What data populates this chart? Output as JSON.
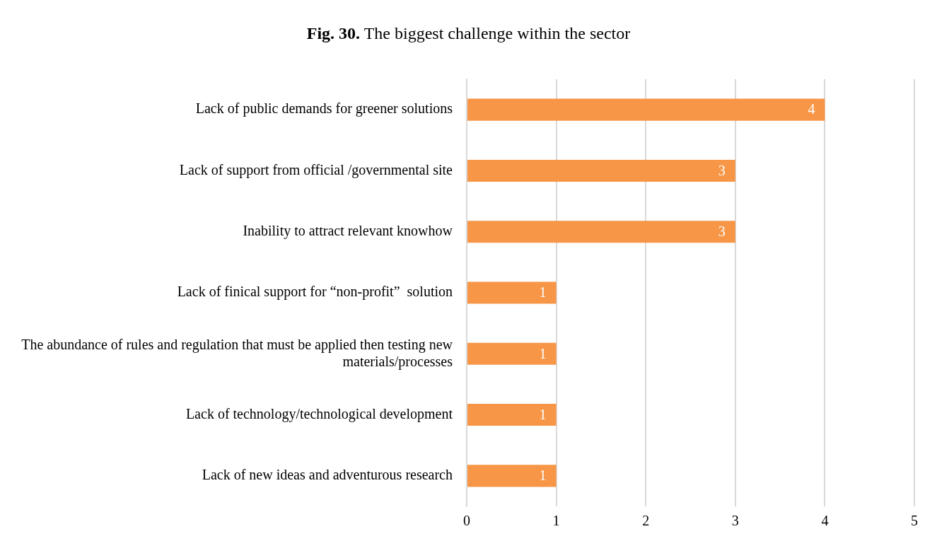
{
  "chart_data": {
    "type": "bar",
    "title": "Fig. 30. The biggest challenge within the sector",
    "orientation": "horizontal",
    "categories": [
      "Lack of public demands for greener solutions",
      "Lack of support from official /governmental site",
      "Inability to attract relevant knowhow",
      "Lack of finical support for “non-profit”  solution",
      "The abundance of rules and regulation that must be applied then testing new materials/processes",
      "Lack of technology/technological development",
      "Lack of new ideas and adventurous research"
    ],
    "values": [
      4,
      3,
      3,
      1,
      1,
      1,
      1
    ],
    "color": "#f79646",
    "xlim": [
      0,
      5
    ],
    "xticks": [
      0,
      1,
      2,
      3,
      4,
      5
    ],
    "grid": "x",
    "data_labels": true,
    "legend": false
  }
}
